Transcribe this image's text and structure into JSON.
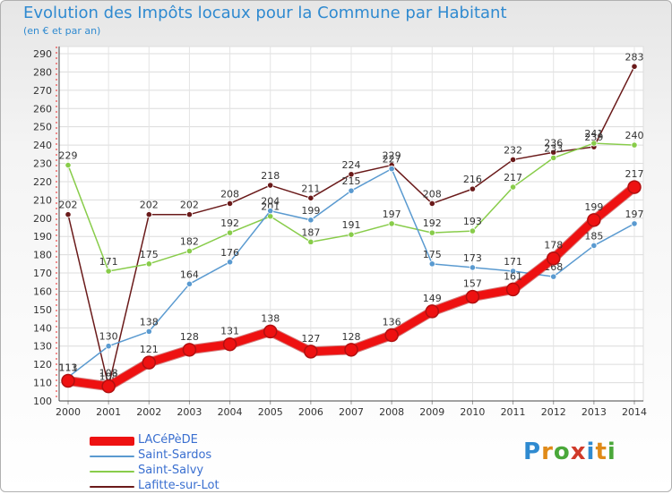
{
  "header": {
    "title": "Evolution des Impôts locaux pour la Commune par Habitant",
    "subtitle": "(en € et par an)"
  },
  "logo": {
    "text": "Proxiti"
  },
  "chart_data": {
    "type": "line",
    "title": "Evolution des Impôts locaux pour la Commune par Habitant",
    "subtitle": "(en € et par an)",
    "xlabel": "",
    "ylabel": "",
    "x": [
      "2000",
      "2001",
      "2002",
      "2003",
      "2004",
      "2005",
      "2006",
      "2007",
      "2008",
      "2009",
      "2010",
      "2011",
      "2012",
      "2013",
      "2014"
    ],
    "ylim": [
      100,
      290
    ],
    "yticks": [
      100,
      110,
      120,
      130,
      140,
      150,
      160,
      170,
      180,
      190,
      200,
      210,
      220,
      230,
      240,
      250,
      260,
      270,
      280,
      290
    ],
    "grid": true,
    "legend": "bottom-left",
    "series": [
      {
        "name": "Lafitte-sur-Lot",
        "color": "#6a1a1a",
        "values": [
          202,
          108,
          202,
          202,
          208,
          218,
          211,
          224,
          229,
          208,
          216,
          232,
          236,
          239,
          283
        ],
        "labels": [
          "202",
          "108",
          "202",
          "202",
          "208",
          "218",
          "211",
          "224",
          "229",
          "208",
          "216",
          "232",
          "236",
          "239",
          "283"
        ]
      },
      {
        "name": "Saint-Salvy",
        "color": "#88cc4a",
        "values": [
          229,
          171,
          175,
          182,
          192,
          201,
          187,
          191,
          197,
          192,
          193,
          217,
          233,
          241,
          240
        ],
        "labels": [
          "229",
          "171",
          "175",
          "182",
          "192",
          "201",
          "187",
          "191",
          "197",
          "192",
          "193",
          "217",
          "233",
          "241",
          "240"
        ]
      },
      {
        "name": "Saint-Sardos",
        "color": "#5a9ad0",
        "values": [
          113,
          130,
          138,
          164,
          176,
          204,
          199,
          215,
          227,
          175,
          173,
          171,
          168,
          185,
          197
        ],
        "labels": [
          "113",
          "130",
          "138",
          "164",
          "176",
          "204",
          "199",
          "215",
          "227",
          "175",
          "173",
          "171",
          "168",
          "185",
          "197"
        ]
      },
      {
        "name": "LACéPèDE",
        "color": "#ee1111",
        "values": [
          111,
          108,
          121,
          128,
          131,
          138,
          127,
          128,
          136,
          149,
          157,
          161,
          178,
          199,
          217
        ],
        "labels": [
          "111",
          "108",
          "121",
          "128",
          "131",
          "138",
          "127",
          "128",
          "136",
          "149",
          "157",
          "161",
          "178",
          "199",
          "217"
        ]
      }
    ]
  },
  "legend": {
    "items": [
      {
        "label": "LACéPèDE",
        "color": "#ee1111",
        "thickness": 10
      },
      {
        "label": "Saint-Sardos",
        "color": "#5a9ad0",
        "thickness": 2
      },
      {
        "label": "Saint-Salvy",
        "color": "#88cc4a",
        "thickness": 2
      },
      {
        "label": "Lafitte-sur-Lot",
        "color": "#6a1a1a",
        "thickness": 2
      }
    ]
  }
}
